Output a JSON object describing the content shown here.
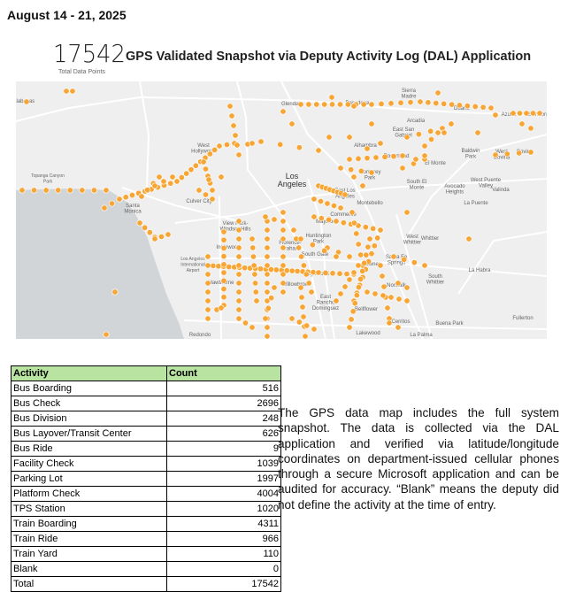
{
  "date_range": "August 14 - 21, 2025",
  "total": {
    "value": "17542",
    "label": "Total Data Points"
  },
  "title": "GPS Validated Snapshot via Deputy Activity Log (DAL) Application",
  "map": {
    "marker_color": "#f7a534",
    "land_color": "#efefef",
    "water_color": "#d2d5d7",
    "places": [
      "Calabasas",
      "Glendale",
      "Pasadena",
      "Sierra Madre",
      "Arcadia",
      "Duarte",
      "Azusa",
      "Glendora",
      "East San Gabriel",
      "Alhambra",
      "Rosemead",
      "El Monte",
      "Baldwin Park",
      "West Covina",
      "Covina",
      "Los Angeles",
      "Monterey Park",
      "South El Monte",
      "West Puente Valley",
      "Avocado Heights",
      "Valinda",
      "East Los Angeles",
      "Montebello",
      "La Puente",
      "West Hollywood",
      "Culver City",
      "Topanga Canyon Park",
      "Santa Monica",
      "View Park-Windsor Hills",
      "Inglewood",
      "Los Angeles International Airport",
      "Lennox",
      "Hawthorne",
      "Redondo",
      "Commerce",
      "Maywood",
      "Huntington Park",
      "Florence-Graham",
      "South Gate",
      "Downey",
      "Santa Fe Springs",
      "West Whittier",
      "Whittier",
      "La Habra",
      "South Whittier",
      "Lynwood",
      "Willowbrook",
      "Norwalk",
      "East Rancho Dominguez",
      "Bellflower",
      "Fullerton",
      "Buena Park",
      "Cerritos",
      "Lakewood",
      "La Palma"
    ]
  },
  "table": {
    "headers": [
      "Activity",
      "Count"
    ],
    "rows": [
      [
        "Bus Boarding",
        "516"
      ],
      [
        "Bus Check",
        "2696"
      ],
      [
        "Bus Division",
        "248"
      ],
      [
        "Bus Layover/Transit Center",
        "626"
      ],
      [
        "Bus Ride",
        "9"
      ],
      [
        "Facility Check",
        "1039"
      ],
      [
        "Parking Lot",
        "1997"
      ],
      [
        "Platform Check",
        "4004"
      ],
      [
        "TPS Station",
        "1020"
      ],
      [
        "Train Boarding",
        "4311"
      ],
      [
        "Train Ride",
        "966"
      ],
      [
        "Train Yard",
        "110"
      ],
      [
        "Blank",
        "0"
      ],
      [
        "Total",
        "17542"
      ]
    ]
  },
  "note": "The GPS data map includes the full system snapshot. The data is collected via the DAL application and verified via latitude/longitude coordinates on department-issued cellular phones through a secure Microsoft application and can be audited for accuracy. “Blank” means the deputy did not define the activity at the time of entry."
}
